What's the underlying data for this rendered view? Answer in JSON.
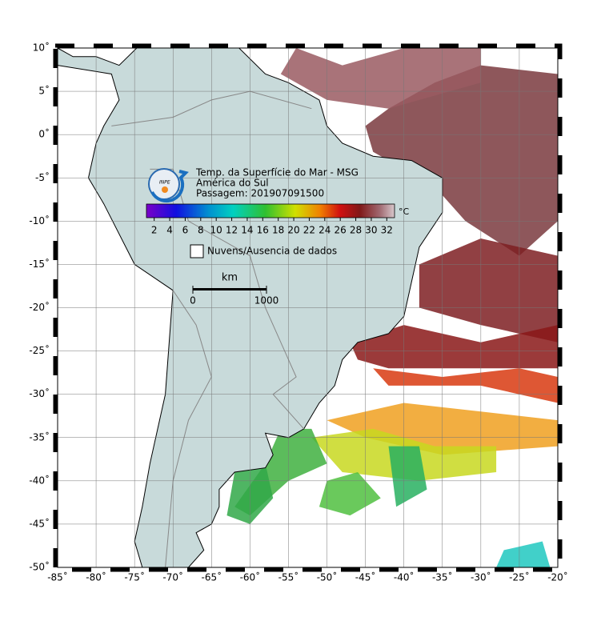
{
  "map": {
    "title": "Temp. da Superfície do Mar - MSG",
    "subtitle": "América do Sul",
    "timestamp": "Passagem: 201907091500",
    "logo": "INPE",
    "xlim": [
      -85,
      -20
    ],
    "ylim": [
      -50,
      10
    ],
    "xticks": [
      {
        "value": -85,
        "label": "-85˚"
      },
      {
        "value": -80,
        "label": "-80˚"
      },
      {
        "value": -75,
        "label": "-75˚"
      },
      {
        "value": -70,
        "label": "-70˚"
      },
      {
        "value": -65,
        "label": "-65˚"
      },
      {
        "value": -60,
        "label": "-60˚"
      },
      {
        "value": -55,
        "label": "-55˚"
      },
      {
        "value": -50,
        "label": "-50˚"
      },
      {
        "value": -45,
        "label": "-45˚"
      },
      {
        "value": -40,
        "label": "-40˚"
      },
      {
        "value": -35,
        "label": "-35˚"
      },
      {
        "value": -30,
        "label": "-30˚"
      },
      {
        "value": -25,
        "label": "-25˚"
      },
      {
        "value": -20,
        "label": "-20˚"
      }
    ],
    "yticks": [
      {
        "value": 10,
        "label": "10˚"
      },
      {
        "value": 5,
        "label": "5˚"
      },
      {
        "value": 0,
        "label": "0˚"
      },
      {
        "value": -5,
        "label": "-5˚"
      },
      {
        "value": -10,
        "label": "-10˚"
      },
      {
        "value": -15,
        "label": "-15˚"
      },
      {
        "value": -20,
        "label": "-20˚"
      },
      {
        "value": -25,
        "label": "-25˚"
      },
      {
        "value": -30,
        "label": "-30˚"
      },
      {
        "value": -35,
        "label": "-35˚"
      },
      {
        "value": -40,
        "label": "-40˚"
      },
      {
        "value": -45,
        "label": "-45˚"
      },
      {
        "value": -50,
        "label": "-50˚"
      }
    ],
    "grid": true,
    "colorbar": {
      "lim": [
        1,
        33
      ],
      "ticks": [
        2,
        4,
        6,
        8,
        10,
        12,
        14,
        16,
        18,
        20,
        22,
        24,
        26,
        28,
        30,
        32
      ],
      "unit": "°C"
    },
    "legend": "Nuvens/Ausencia de dados",
    "scale": {
      "unit": "km",
      "ticks": [
        0,
        1000
      ]
    }
  }
}
